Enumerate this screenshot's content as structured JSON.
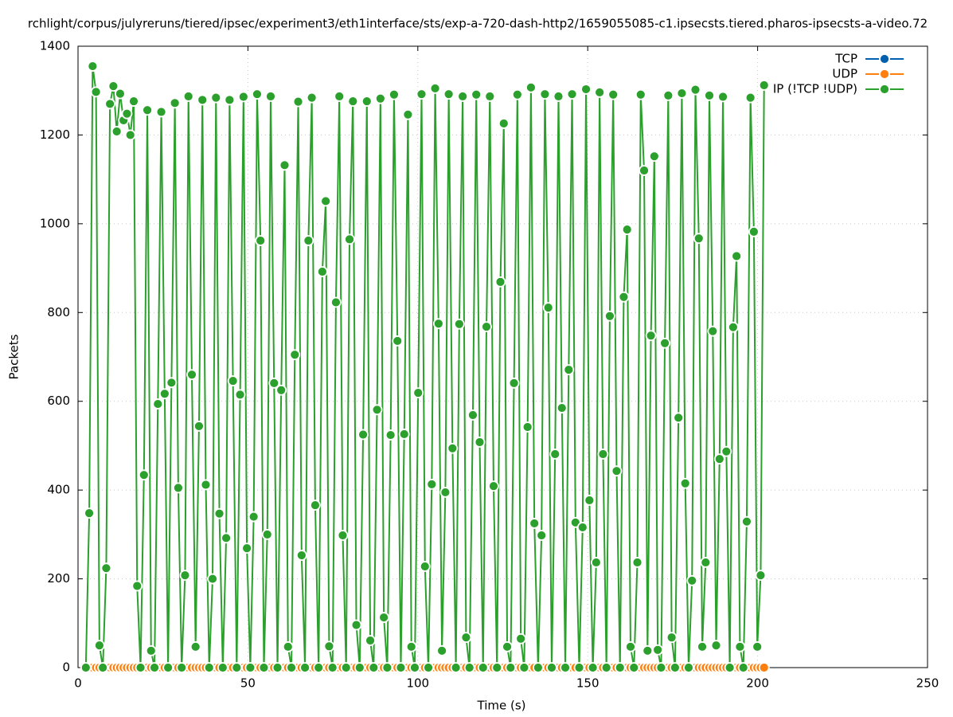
{
  "chart_data": {
    "type": "line",
    "title": "rchlight/corpus/julyreruns/tiered/ipsec/experiment3/eth1interface/sts/exp-a-720-dash-http2/1659055085-c1.ipsecsts.tiered.pharos-ipsecsts-a-video.72",
    "x_label": "Time (s)",
    "y_label": "Packets",
    "xlim": [
      0,
      250
    ],
    "xticks": [
      0,
      50,
      100,
      150,
      200,
      250
    ],
    "ylim": [
      0,
      1400
    ],
    "yticks": [
      0,
      200,
      400,
      600,
      800,
      1000,
      1200,
      1400
    ],
    "grid": true,
    "legend": "top-right",
    "x": [
      2.3,
      3.3,
      4.3,
      5.3,
      6.3,
      7.3,
      8.3,
      9.4,
      10.4,
      11.4,
      12.4,
      13.4,
      14.4,
      15.4,
      16.4,
      17.4,
      18.4,
      19.4,
      20.4,
      21.5,
      22.5,
      23.5,
      24.5,
      25.5,
      26.5,
      27.5,
      28.5,
      29.5,
      30.5,
      31.5,
      32.5,
      33.5,
      34.6,
      35.6,
      36.6,
      37.6,
      38.6,
      39.6,
      40.6,
      41.6,
      42.6,
      43.6,
      44.6,
      45.6,
      46.7,
      47.7,
      48.7,
      49.7,
      50.7,
      51.7,
      52.7,
      53.7,
      54.7,
      55.7,
      56.7,
      57.7,
      58.7,
      59.8,
      60.8,
      61.8,
      62.8,
      63.8,
      64.8,
      65.8,
      66.8,
      67.8,
      68.8,
      69.8,
      70.8,
      71.9,
      72.9,
      73.9,
      74.9,
      75.9,
      76.9,
      77.9,
      78.9,
      79.9,
      80.9,
      81.9,
      82.9,
      83.9,
      85.0,
      86.0,
      87.0,
      88.0,
      89.0,
      90.0,
      91.0,
      92.0,
      93.0,
      94.0,
      95.0,
      96.0,
      97.1,
      98.1,
      99.1,
      100.1,
      101.1,
      102.1,
      103.1,
      104.1,
      105.1,
      106.1,
      107.1,
      108.1,
      109.1,
      110.2,
      111.2,
      112.2,
      113.2,
      114.2,
      115.2,
      116.2,
      117.2,
      118.2,
      119.2,
      120.2,
      121.2,
      122.3,
      123.3,
      124.3,
      125.3,
      126.3,
      127.3,
      128.3,
      129.3,
      130.3,
      131.3,
      132.3,
      133.3,
      134.3,
      135.4,
      136.4,
      137.4,
      138.4,
      139.4,
      140.4,
      141.4,
      142.4,
      143.4,
      144.4,
      145.4,
      146.4,
      147.5,
      148.5,
      149.5,
      150.5,
      151.5,
      152.5,
      153.5,
      154.5,
      155.5,
      156.5,
      157.5,
      158.5,
      159.5,
      160.6,
      161.6,
      162.6,
      163.6,
      164.6,
      165.6,
      166.6,
      167.6,
      168.6,
      169.6,
      170.6,
      171.6,
      172.7,
      173.7,
      174.7,
      175.7,
      176.7,
      177.7,
      178.7,
      179.7,
      180.7,
      181.7,
      182.7,
      183.7,
      184.7,
      185.8,
      186.8,
      187.8,
      188.8,
      189.8,
      190.8,
      191.8,
      192.8,
      193.8,
      194.8,
      195.8,
      196.8,
      197.9,
      198.9,
      199.9,
      200.9,
      201.9
    ],
    "series": [
      {
        "name": "TCP",
        "color": "#0060ad",
        "values": [
          0,
          0,
          0,
          0,
          0,
          0,
          0,
          0,
          0,
          0,
          0,
          0,
          0,
          0,
          0,
          0,
          0,
          0,
          0,
          0,
          0,
          0,
          0,
          0,
          0,
          0,
          0,
          0,
          0,
          0,
          0,
          0,
          0,
          0,
          0,
          0,
          0,
          0,
          0,
          0,
          0,
          0,
          0,
          0,
          0,
          0,
          0,
          0,
          0,
          0,
          0,
          0,
          0,
          0,
          0,
          0,
          0,
          0,
          0,
          0,
          0,
          0,
          0,
          0,
          0,
          0,
          0,
          0,
          0,
          0,
          0,
          0,
          0,
          0,
          0,
          0,
          0,
          0,
          0,
          0,
          0,
          0,
          0,
          0,
          0,
          0,
          0,
          0,
          0,
          0,
          0,
          0,
          0,
          0,
          0,
          0,
          0,
          0,
          0,
          0,
          0,
          0,
          0,
          0,
          0,
          0,
          0,
          0,
          0,
          0,
          0,
          0,
          0,
          0,
          0,
          0,
          0,
          0,
          0,
          0,
          0,
          0,
          0,
          0,
          0,
          0,
          0,
          0,
          0,
          0,
          0,
          0,
          0,
          0,
          0,
          0,
          0,
          0,
          0,
          0,
          0,
          0,
          0,
          0,
          0,
          0,
          0,
          0,
          0,
          0,
          0,
          0,
          0,
          0,
          0,
          0,
          0,
          0,
          0,
          0,
          0,
          0,
          0,
          0,
          0,
          0,
          0,
          0,
          0,
          0,
          0,
          0,
          0,
          0,
          0,
          0,
          0,
          0,
          0,
          0,
          0,
          0,
          0,
          0,
          0,
          0,
          0,
          0,
          0,
          0,
          0,
          0,
          0,
          0,
          0,
          0,
          0,
          0,
          0
        ]
      },
      {
        "name": "UDP",
        "color": "#ff7f0e",
        "values": [
          0,
          0,
          0,
          0,
          0,
          0,
          0,
          0,
          0,
          0,
          0,
          0,
          0,
          0,
          0,
          0,
          0,
          0,
          0,
          0,
          0,
          0,
          0,
          0,
          0,
          0,
          0,
          0,
          0,
          0,
          0,
          0,
          0,
          0,
          0,
          0,
          0,
          0,
          0,
          0,
          0,
          0,
          0,
          0,
          0,
          0,
          0,
          0,
          0,
          0,
          0,
          0,
          0,
          0,
          0,
          0,
          0,
          0,
          0,
          0,
          0,
          0,
          0,
          0,
          0,
          0,
          0,
          0,
          0,
          0,
          0,
          0,
          0,
          0,
          0,
          0,
          0,
          0,
          0,
          0,
          0,
          0,
          0,
          0,
          0,
          0,
          0,
          0,
          0,
          0,
          0,
          0,
          0,
          0,
          0,
          0,
          0,
          0,
          0,
          0,
          0,
          0,
          0,
          0,
          0,
          0,
          0,
          0,
          0,
          0,
          0,
          0,
          0,
          0,
          0,
          0,
          0,
          0,
          0,
          0,
          0,
          0,
          0,
          0,
          0,
          0,
          0,
          0,
          0,
          0,
          0,
          0,
          0,
          0,
          0,
          0,
          0,
          0,
          0,
          0,
          0,
          0,
          0,
          0,
          0,
          0,
          0,
          0,
          0,
          0,
          0,
          0,
          0,
          0,
          0,
          0,
          0,
          0,
          0,
          0,
          0,
          0,
          0,
          0,
          0,
          0,
          0,
          0,
          0,
          0,
          0,
          0,
          0,
          0,
          0,
          0,
          0,
          0,
          0,
          0,
          0,
          0,
          0,
          0,
          0,
          0,
          0,
          0,
          0,
          0,
          0,
          0,
          0,
          0,
          0,
          0,
          0,
          0,
          0
        ]
      },
      {
        "name": "IP (!TCP  !UDP)",
        "color": "#2ca02c",
        "values": [
          0,
          348,
          1355,
          1297,
          50,
          0,
          224,
          1270,
          1310,
          1208,
          1293,
          1233,
          1248,
          1200,
          1276,
          184,
          0,
          434,
          1256,
          38,
          0,
          594,
          1252,
          617,
          0,
          642,
          1272,
          405,
          0,
          208,
          1287,
          660,
          47,
          544,
          1279,
          412,
          0,
          200,
          1284,
          347,
          0,
          292,
          1279,
          646,
          0,
          615,
          1286,
          269,
          0,
          340,
          1292,
          962,
          0,
          300,
          1287,
          641,
          0,
          625,
          1132,
          47,
          0,
          705,
          1275,
          253,
          0,
          962,
          1284,
          366,
          0,
          892,
          1051,
          48,
          0,
          823,
          1287,
          298,
          0,
          965,
          1276,
          96,
          0,
          525,
          1276,
          61,
          0,
          581,
          1282,
          113,
          0,
          524,
          1291,
          736,
          0,
          526,
          1246,
          47,
          0,
          619,
          1292,
          228,
          0,
          413,
          1305,
          775,
          38,
          395,
          1292,
          494,
          0,
          774,
          1287,
          68,
          0,
          569,
          1291,
          508,
          0,
          768,
          1287,
          409,
          0,
          869,
          1226,
          47,
          0,
          641,
          1291,
          65,
          0,
          542,
          1307,
          325,
          0,
          298,
          1292,
          811,
          0,
          481,
          1287,
          585,
          0,
          671,
          1292,
          327,
          0,
          316,
          1303,
          377,
          0,
          237,
          1296,
          481,
          0,
          792,
          1291,
          443,
          0,
          835,
          987,
          47,
          0,
          237,
          1291,
          1120,
          38,
          748,
          1152,
          40,
          0,
          731,
          1289,
          68,
          0,
          563,
          1294,
          415,
          0,
          196,
          1302,
          967,
          47,
          237,
          1289,
          758,
          50,
          470,
          1286,
          487,
          0,
          767,
          927,
          47,
          0,
          329,
          1284,
          982,
          47,
          208,
          1312
        ]
      }
    ]
  }
}
